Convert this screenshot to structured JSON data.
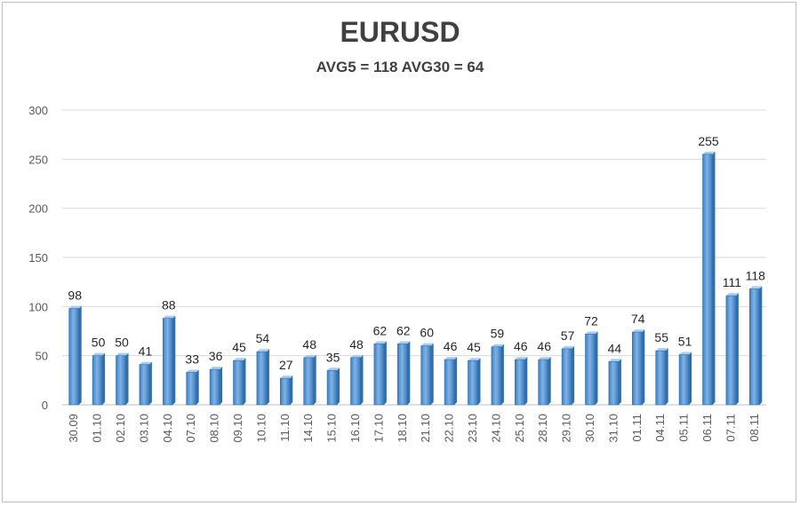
{
  "chart_data": {
    "type": "bar",
    "title": "EURUSD",
    "subtitle": "AVG5 = 118 AVG30 = 64",
    "categories": [
      "30.09",
      "01.10",
      "02.10",
      "03.10",
      "04.10",
      "07.10",
      "08.10",
      "09.10",
      "10.10",
      "11.10",
      "14.10",
      "15.10",
      "16.10",
      "17.10",
      "18.10",
      "21.10",
      "22.10",
      "23.10",
      "24.10",
      "25.10",
      "28.10",
      "29.10",
      "30.10",
      "31.10",
      "01.11",
      "04.11",
      "05.11",
      "06.11",
      "07.11",
      "08.11"
    ],
    "values": [
      98,
      50,
      50,
      41,
      88,
      33,
      36,
      45,
      54,
      27,
      48,
      35,
      48,
      62,
      62,
      60,
      46,
      45,
      59,
      46,
      46,
      57,
      72,
      44,
      74,
      55,
      51,
      255,
      111,
      118
    ],
    "ylim": [
      0,
      300
    ],
    "yticks": [
      0,
      50,
      100,
      150,
      200,
      250,
      300
    ],
    "grid": true,
    "bar_color": "#5b9bd5",
    "bar_color_dark": "#2e6fad"
  }
}
